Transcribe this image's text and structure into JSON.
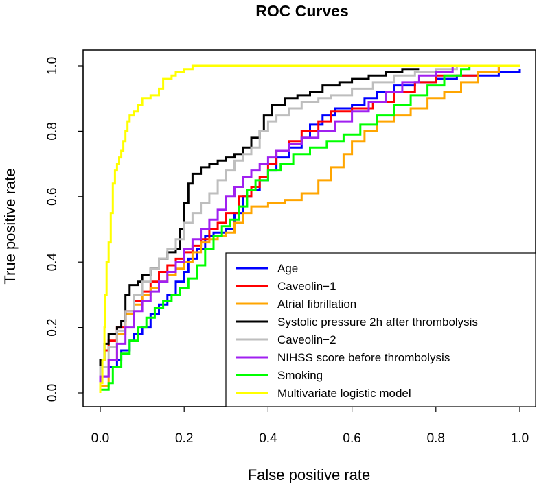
{
  "chart_data": {
    "type": "line",
    "title": "ROC Curves",
    "xlabel": "False positive rate",
    "ylabel": "True positive rate",
    "xlim": [
      0,
      1
    ],
    "ylim": [
      0,
      1
    ],
    "xticks": [
      "0.0",
      "0.2",
      "0.4",
      "0.6",
      "0.8",
      "1.0"
    ],
    "yticks": [
      "0.0",
      "0.2",
      "0.4",
      "0.6",
      "0.8",
      "1.0"
    ],
    "legend_position": "bottom-right",
    "series": [
      {
        "name": "Age",
        "color": "#0000ff",
        "points": [
          [
            0,
            0
          ],
          [
            0,
            0.05
          ],
          [
            0.02,
            0.08
          ],
          [
            0.04,
            0.1
          ],
          [
            0.05,
            0.13
          ],
          [
            0.07,
            0.16
          ],
          [
            0.08,
            0.18
          ],
          [
            0.1,
            0.2
          ],
          [
            0.12,
            0.24
          ],
          [
            0.14,
            0.27
          ],
          [
            0.16,
            0.3
          ],
          [
            0.18,
            0.34
          ],
          [
            0.2,
            0.37
          ],
          [
            0.21,
            0.41
          ],
          [
            0.23,
            0.44
          ],
          [
            0.25,
            0.48
          ],
          [
            0.27,
            0.49
          ],
          [
            0.3,
            0.5
          ],
          [
            0.32,
            0.55
          ],
          [
            0.34,
            0.6
          ],
          [
            0.36,
            0.62
          ],
          [
            0.38,
            0.65
          ],
          [
            0.4,
            0.68
          ],
          [
            0.42,
            0.72
          ],
          [
            0.45,
            0.75
          ],
          [
            0.48,
            0.78
          ],
          [
            0.5,
            0.82
          ],
          [
            0.53,
            0.85
          ],
          [
            0.56,
            0.87
          ],
          [
            0.6,
            0.88
          ],
          [
            0.63,
            0.9
          ],
          [
            0.66,
            0.92
          ],
          [
            0.7,
            0.94
          ],
          [
            0.75,
            0.95
          ],
          [
            0.8,
            0.96
          ],
          [
            0.85,
            0.97
          ],
          [
            0.9,
            0.97
          ],
          [
            0.95,
            0.98
          ],
          [
            1,
            0.99
          ]
        ]
      },
      {
        "name": "Caveolin−1",
        "color": "#ff0000",
        "points": [
          [
            0,
            0
          ],
          [
            0,
            0.1
          ],
          [
            0.01,
            0.13
          ],
          [
            0.02,
            0.16
          ],
          [
            0.04,
            0.2
          ],
          [
            0.06,
            0.25
          ],
          [
            0.08,
            0.28
          ],
          [
            0.1,
            0.31
          ],
          [
            0.12,
            0.34
          ],
          [
            0.14,
            0.37
          ],
          [
            0.16,
            0.39
          ],
          [
            0.18,
            0.41
          ],
          [
            0.2,
            0.43
          ],
          [
            0.22,
            0.45
          ],
          [
            0.24,
            0.47
          ],
          [
            0.26,
            0.5
          ],
          [
            0.28,
            0.52
          ],
          [
            0.3,
            0.55
          ],
          [
            0.33,
            0.6
          ],
          [
            0.36,
            0.63
          ],
          [
            0.38,
            0.66
          ],
          [
            0.4,
            0.7
          ],
          [
            0.42,
            0.74
          ],
          [
            0.45,
            0.77
          ],
          [
            0.48,
            0.8
          ],
          [
            0.52,
            0.83
          ],
          [
            0.55,
            0.86
          ],
          [
            0.6,
            0.87
          ],
          [
            0.65,
            0.89
          ],
          [
            0.7,
            0.92
          ],
          [
            0.75,
            0.95
          ],
          [
            0.8,
            0.97
          ],
          [
            0.9,
            0.98
          ],
          [
            0.95,
            1
          ],
          [
            1,
            1
          ]
        ]
      },
      {
        "name": "Atrial fibrillation",
        "color": "#ffa500",
        "points": [
          [
            0,
            0
          ],
          [
            0,
            0.02
          ],
          [
            0.02,
            0.1
          ],
          [
            0.04,
            0.18
          ],
          [
            0.06,
            0.24
          ],
          [
            0.08,
            0.27
          ],
          [
            0.1,
            0.3
          ],
          [
            0.12,
            0.32
          ],
          [
            0.14,
            0.34
          ],
          [
            0.16,
            0.36
          ],
          [
            0.18,
            0.38
          ],
          [
            0.2,
            0.4
          ],
          [
            0.22,
            0.43
          ],
          [
            0.24,
            0.46
          ],
          [
            0.26,
            0.47
          ],
          [
            0.28,
            0.48
          ],
          [
            0.3,
            0.49
          ],
          [
            0.32,
            0.52
          ],
          [
            0.34,
            0.55
          ],
          [
            0.36,
            0.57
          ],
          [
            0.4,
            0.58
          ],
          [
            0.44,
            0.59
          ],
          [
            0.48,
            0.61
          ],
          [
            0.52,
            0.65
          ],
          [
            0.55,
            0.69
          ],
          [
            0.58,
            0.73
          ],
          [
            0.6,
            0.77
          ],
          [
            0.63,
            0.8
          ],
          [
            0.66,
            0.83
          ],
          [
            0.7,
            0.85
          ],
          [
            0.74,
            0.87
          ],
          [
            0.78,
            0.9
          ],
          [
            0.82,
            0.92
          ],
          [
            0.86,
            0.95
          ],
          [
            0.9,
            0.98
          ],
          [
            0.95,
            1
          ],
          [
            1,
            1
          ]
        ]
      },
      {
        "name": "Systolic pressure 2h after thrombolysis",
        "color": "#000000",
        "points": [
          [
            0,
            0
          ],
          [
            0,
            0.1
          ],
          [
            0.01,
            0.15
          ],
          [
            0.02,
            0.18
          ],
          [
            0.04,
            0.2
          ],
          [
            0.05,
            0.22
          ],
          [
            0.06,
            0.3
          ],
          [
            0.07,
            0.33
          ],
          [
            0.09,
            0.34
          ],
          [
            0.1,
            0.36
          ],
          [
            0.12,
            0.38
          ],
          [
            0.14,
            0.41
          ],
          [
            0.16,
            0.43
          ],
          [
            0.18,
            0.44
          ],
          [
            0.19,
            0.5
          ],
          [
            0.2,
            0.58
          ],
          [
            0.21,
            0.64
          ],
          [
            0.22,
            0.67
          ],
          [
            0.24,
            0.69
          ],
          [
            0.26,
            0.7
          ],
          [
            0.28,
            0.71
          ],
          [
            0.3,
            0.72
          ],
          [
            0.32,
            0.73
          ],
          [
            0.34,
            0.75
          ],
          [
            0.36,
            0.78
          ],
          [
            0.38,
            0.8
          ],
          [
            0.39,
            0.85
          ],
          [
            0.41,
            0.88
          ],
          [
            0.44,
            0.9
          ],
          [
            0.47,
            0.91
          ],
          [
            0.5,
            0.92
          ],
          [
            0.53,
            0.94
          ],
          [
            0.57,
            0.95
          ],
          [
            0.6,
            0.96
          ],
          [
            0.64,
            0.97
          ],
          [
            0.68,
            0.98
          ],
          [
            0.72,
            0.99
          ],
          [
            0.76,
            0.99
          ]
        ]
      },
      {
        "name": "Caveolin−2",
        "color": "#bebebe",
        "points": [
          [
            0,
            0
          ],
          [
            0,
            0.08
          ],
          [
            0.02,
            0.14
          ],
          [
            0.04,
            0.19
          ],
          [
            0.06,
            0.25
          ],
          [
            0.08,
            0.3
          ],
          [
            0.1,
            0.34
          ],
          [
            0.12,
            0.38
          ],
          [
            0.14,
            0.41
          ],
          [
            0.16,
            0.44
          ],
          [
            0.18,
            0.47
          ],
          [
            0.2,
            0.52
          ],
          [
            0.22,
            0.55
          ],
          [
            0.24,
            0.58
          ],
          [
            0.26,
            0.61
          ],
          [
            0.28,
            0.65
          ],
          [
            0.3,
            0.68
          ],
          [
            0.32,
            0.71
          ],
          [
            0.34,
            0.73
          ],
          [
            0.36,
            0.75
          ],
          [
            0.38,
            0.8
          ],
          [
            0.4,
            0.83
          ],
          [
            0.42,
            0.85
          ],
          [
            0.45,
            0.87
          ],
          [
            0.48,
            0.89
          ],
          [
            0.52,
            0.9
          ],
          [
            0.55,
            0.91
          ],
          [
            0.6,
            0.93
          ],
          [
            0.65,
            0.95
          ],
          [
            0.7,
            0.97
          ],
          [
            0.75,
            0.98
          ],
          [
            0.8,
            0.99
          ],
          [
            0.85,
            1
          ],
          [
            0.9,
            1
          ]
        ]
      },
      {
        "name": "NIHSS score before thrombolysis",
        "color": "#a020f0",
        "points": [
          [
            0,
            0
          ],
          [
            0,
            0.05
          ],
          [
            0.02,
            0.1
          ],
          [
            0.04,
            0.15
          ],
          [
            0.06,
            0.2
          ],
          [
            0.08,
            0.25
          ],
          [
            0.1,
            0.28
          ],
          [
            0.12,
            0.31
          ],
          [
            0.14,
            0.34
          ],
          [
            0.16,
            0.37
          ],
          [
            0.18,
            0.4
          ],
          [
            0.2,
            0.44
          ],
          [
            0.22,
            0.47
          ],
          [
            0.24,
            0.5
          ],
          [
            0.26,
            0.53
          ],
          [
            0.28,
            0.56
          ],
          [
            0.3,
            0.6
          ],
          [
            0.32,
            0.63
          ],
          [
            0.34,
            0.66
          ],
          [
            0.36,
            0.68
          ],
          [
            0.38,
            0.7
          ],
          [
            0.4,
            0.72
          ],
          [
            0.42,
            0.74
          ],
          [
            0.45,
            0.76
          ],
          [
            0.48,
            0.78
          ],
          [
            0.52,
            0.8
          ],
          [
            0.56,
            0.83
          ],
          [
            0.6,
            0.86
          ],
          [
            0.64,
            0.89
          ],
          [
            0.68,
            0.92
          ],
          [
            0.72,
            0.95
          ],
          [
            0.76,
            0.97
          ],
          [
            0.8,
            0.98
          ],
          [
            0.84,
            1
          ],
          [
            0.88,
            1
          ]
        ]
      },
      {
        "name": "Smoking",
        "color": "#00ff00",
        "points": [
          [
            0,
            0
          ],
          [
            0,
            0.01
          ],
          [
            0.02,
            0.03
          ],
          [
            0.03,
            0.08
          ],
          [
            0.05,
            0.12
          ],
          [
            0.07,
            0.16
          ],
          [
            0.09,
            0.2
          ],
          [
            0.11,
            0.23
          ],
          [
            0.13,
            0.26
          ],
          [
            0.15,
            0.28
          ],
          [
            0.17,
            0.3
          ],
          [
            0.19,
            0.32
          ],
          [
            0.21,
            0.35
          ],
          [
            0.23,
            0.39
          ],
          [
            0.25,
            0.44
          ],
          [
            0.27,
            0.48
          ],
          [
            0.29,
            0.51
          ],
          [
            0.31,
            0.53
          ],
          [
            0.33,
            0.57
          ],
          [
            0.35,
            0.62
          ],
          [
            0.37,
            0.65
          ],
          [
            0.4,
            0.68
          ],
          [
            0.43,
            0.7
          ],
          [
            0.46,
            0.73
          ],
          [
            0.5,
            0.75
          ],
          [
            0.54,
            0.77
          ],
          [
            0.58,
            0.79
          ],
          [
            0.62,
            0.82
          ],
          [
            0.66,
            0.85
          ],
          [
            0.7,
            0.88
          ],
          [
            0.74,
            0.91
          ],
          [
            0.78,
            0.94
          ],
          [
            0.82,
            0.97
          ],
          [
            0.86,
            0.99
          ],
          [
            0.88,
            1
          ]
        ]
      },
      {
        "name": "Multivariate logistic model",
        "color": "#ffff00",
        "points": [
          [
            0,
            0
          ],
          [
            0,
            0.03
          ],
          [
            0.005,
            0.1
          ],
          [
            0.01,
            0.2
          ],
          [
            0.012,
            0.3
          ],
          [
            0.015,
            0.4
          ],
          [
            0.02,
            0.46
          ],
          [
            0.025,
            0.55
          ],
          [
            0.03,
            0.64
          ],
          [
            0.035,
            0.68
          ],
          [
            0.04,
            0.7
          ],
          [
            0.045,
            0.72
          ],
          [
            0.05,
            0.74
          ],
          [
            0.055,
            0.77
          ],
          [
            0.06,
            0.8
          ],
          [
            0.065,
            0.83
          ],
          [
            0.07,
            0.85
          ],
          [
            0.08,
            0.86
          ],
          [
            0.09,
            0.88
          ],
          [
            0.1,
            0.9
          ],
          [
            0.12,
            0.91
          ],
          [
            0.14,
            0.93
          ],
          [
            0.15,
            0.96
          ],
          [
            0.17,
            0.97
          ],
          [
            0.18,
            0.98
          ],
          [
            0.2,
            0.99
          ],
          [
            0.22,
            1
          ],
          [
            0.3,
            1
          ],
          [
            0.5,
            1
          ],
          [
            0.8,
            1
          ],
          [
            1,
            1
          ]
        ]
      }
    ]
  }
}
